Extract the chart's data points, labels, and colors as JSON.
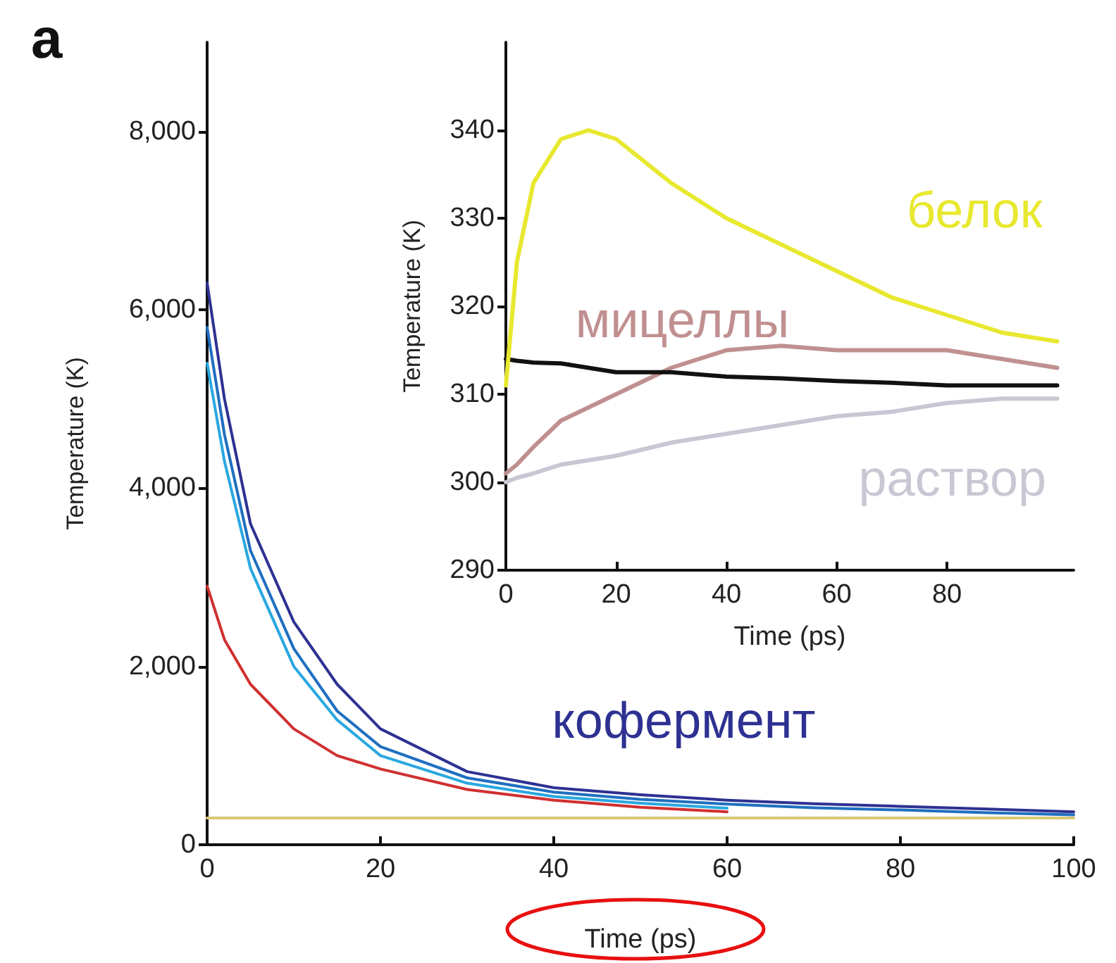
{
  "chart_data": [
    {
      "type": "line",
      "xlabel": "Time (ps)",
      "ylabel": "Temperature (K)",
      "annotations": [
        "a"
      ],
      "legend": false,
      "grid": false,
      "xlim": [
        0,
        100
      ],
      "xticks": [
        0,
        20,
        40,
        60,
        80,
        100
      ],
      "ylim": [
        0,
        9000
      ],
      "yticks": [
        0,
        {
          "value": 2000,
          "label": "2,000"
        },
        {
          "value": 4000,
          "label": "4,000"
        },
        {
          "value": 6000,
          "label": "6,000"
        },
        {
          "value": 8000,
          "label": "8,000"
        }
      ],
      "x": [
        0,
        2,
        5,
        10,
        15,
        20,
        30,
        40,
        50,
        60,
        70,
        80,
        90,
        100
      ],
      "series": [
        {
          "color": "#d8c878",
          "values": [
            300,
            300,
            300,
            300,
            300,
            300,
            300,
            300,
            300,
            300,
            300,
            300,
            300,
            300
          ]
        },
        {
          "color": "#d03030",
          "values": [
            2900,
            2300,
            1800,
            1300,
            1000,
            850,
            620,
            500,
            420,
            370,
            null,
            null,
            null,
            null
          ]
        },
        {
          "color": "#29a8e0",
          "values": [
            5400,
            4300,
            3100,
            2000,
            1400,
            1000,
            690,
            540,
            465,
            410,
            null,
            null,
            null,
            null
          ]
        },
        {
          "color": "#1f6fc0",
          "values": [
            5800,
            4600,
            3300,
            2200,
            1500,
            1100,
            750,
            590,
            510,
            455,
            415,
            390,
            360,
            335
          ]
        },
        {
          "name": "кофермент",
          "color": "#2e3192",
          "values": [
            6300,
            5000,
            3600,
            2500,
            1800,
            1300,
            820,
            640,
            560,
            500,
            460,
            430,
            400,
            370
          ]
        }
      ]
    },
    {
      "type": "line",
      "xlabel": "Time (ps)",
      "ylabel": "Temperature (K)",
      "legend": false,
      "grid": false,
      "xlim": [
        0,
        103
      ],
      "xticks": [
        0,
        20,
        40,
        60,
        80
      ],
      "ylim": [
        290,
        350
      ],
      "yticks": [
        290,
        300,
        310,
        320,
        330,
        340
      ],
      "x": [
        0,
        2,
        5,
        10,
        15,
        20,
        30,
        40,
        50,
        60,
        70,
        80,
        90,
        100
      ],
      "series": [
        {
          "name": "раствор",
          "color": "#c8c8d4",
          "values": [
            300,
            300.5,
            301,
            302,
            302.5,
            303,
            304.5,
            305.5,
            306.5,
            307.5,
            308,
            309,
            309.5,
            309.5
          ]
        },
        {
          "name": "мицеллы",
          "color": "#c09090",
          "values": [
            301,
            302,
            304,
            307,
            308.5,
            310,
            313,
            315,
            315.5,
            315,
            315,
            315,
            314,
            313
          ]
        },
        {
          "color": "#111111",
          "values": [
            314,
            313.8,
            313.6,
            313.5,
            313,
            312.5,
            312.5,
            312,
            311.8,
            311.5,
            311.3,
            311,
            311,
            311
          ]
        },
        {
          "name": "белок",
          "color": "#e8e830",
          "values": [
            311,
            325,
            334,
            339,
            340,
            339,
            334,
            330,
            327,
            324,
            321,
            319,
            317,
            316
          ]
        }
      ]
    }
  ]
}
